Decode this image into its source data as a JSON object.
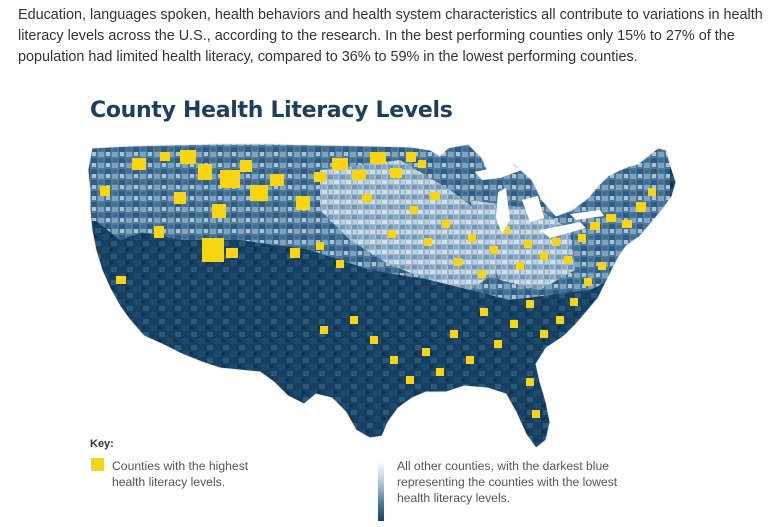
{
  "article": {
    "intro": "Education, languages spoken, health behaviors and health system characteristics all contribute to variations in health literacy levels across the U.S., according to the research. In the best performing counties only 15% to 27% of the population had limited health literacy, compared to 36% to 59% in the lowest performing counties."
  },
  "map": {
    "title": "County Health Literacy Levels",
    "colors": {
      "highest": "#f7d513",
      "lowest": "#173f5f",
      "mid": "#4d7899",
      "light": "#c9d7e4"
    },
    "legend": {
      "key_label": "Key:",
      "items": [
        {
          "label": "Counties with the highest health literacy levels."
        },
        {
          "label": "All other counties, with the darkest blue representing the counties with the lowest health literacy levels."
        }
      ]
    }
  }
}
